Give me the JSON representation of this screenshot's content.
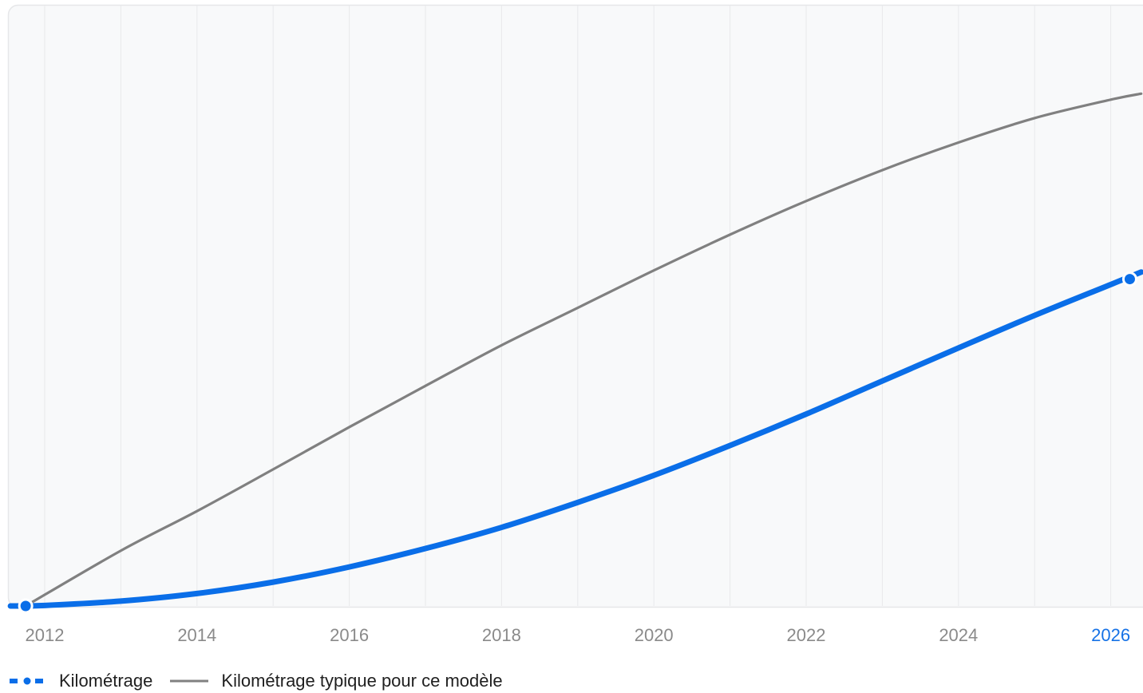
{
  "chart_data": {
    "type": "line",
    "x_ticks": [
      "2012",
      "2014",
      "2016",
      "2018",
      "2020",
      "2022",
      "2024",
      "2026"
    ],
    "highlighted_tick": "2026",
    "xlim": [
      2011.55,
      2026.4
    ],
    "ylim": [
      0,
      100
    ],
    "grid": "vertical",
    "series": [
      {
        "name": "Kilométrage typique pour ce modèle",
        "color": "#808080",
        "style": "solid-thin",
        "points": [
          [
            2011.75,
            0
          ],
          [
            2013,
            10.2
          ],
          [
            2014,
            17.5
          ],
          [
            2015,
            25.2
          ],
          [
            2016,
            33
          ],
          [
            2017,
            40.6
          ],
          [
            2018,
            48.1
          ],
          [
            2019,
            55
          ],
          [
            2020,
            61.9
          ],
          [
            2021,
            68.5
          ],
          [
            2022,
            74.7
          ],
          [
            2023,
            80.4
          ],
          [
            2024,
            85.5
          ],
          [
            2025,
            90
          ],
          [
            2026,
            93.4
          ],
          [
            2026.4,
            94.5
          ]
        ]
      },
      {
        "name": "Kilométrage",
        "color": "#0a6ee8",
        "style": "solid-thick",
        "points": [
          [
            2011.55,
            0
          ],
          [
            2012,
            0.1
          ],
          [
            2013,
            0.9
          ],
          [
            2014,
            2.3
          ],
          [
            2015,
            4.4
          ],
          [
            2016,
            7.2
          ],
          [
            2017,
            10.6
          ],
          [
            2018,
            14.5
          ],
          [
            2019,
            19.1
          ],
          [
            2020,
            24.1
          ],
          [
            2021,
            29.6
          ],
          [
            2022,
            35.4
          ],
          [
            2023,
            41.5
          ],
          [
            2024,
            47.6
          ],
          [
            2025,
            53.6
          ],
          [
            2026,
            59.3
          ],
          [
            2026.4,
            61.6
          ]
        ],
        "markers": [
          [
            2011.75,
            0
          ],
          [
            2026.25,
            60.3
          ]
        ]
      }
    ],
    "legend": {
      "position": "bottom-left",
      "items": [
        {
          "label": "Kilométrage",
          "color": "#0a6ee8",
          "swatch": "dashed-dot"
        },
        {
          "label": "Kilométrage typique pour ce modèle",
          "color": "#808080",
          "swatch": "line"
        }
      ]
    }
  }
}
